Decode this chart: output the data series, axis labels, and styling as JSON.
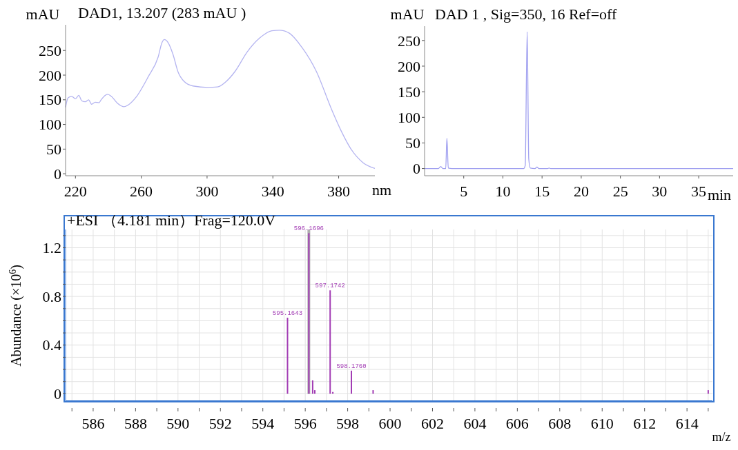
{
  "chart_data": [
    {
      "type": "line",
      "title": "DAD1, 13.207 (283 mAU )",
      "xlabel": "nm",
      "ylabel": "mAU",
      "xlim": [
        214,
        402
      ],
      "ylim": [
        -4,
        302
      ],
      "xticks": [
        220,
        260,
        300,
        340,
        380
      ],
      "yticks": [
        0,
        50,
        100,
        150,
        200,
        250
      ],
      "grid": false,
      "series": [
        {
          "color": "#b4b4f0",
          "x": [
            214,
            215.5,
            217.7,
            220,
            222,
            223.8,
            226,
            228,
            229.8,
            232,
            234.3,
            235.8,
            239.5,
            241.8,
            245.5,
            249.3,
            252.3,
            256.8,
            264.3,
            270.3,
            272.6,
            274,
            276.3,
            279.3,
            282.3,
            286.1,
            291.4,
            300.4,
            306.4,
            310.9,
            316.9,
            324.4,
            331.9,
            339.4,
            344,
            350,
            357.5,
            366.5,
            375.5,
            381.5,
            387.5,
            395,
            402
          ],
          "values": [
            135,
            154,
            157,
            152,
            159,
            148,
            146,
            150,
            141,
            145,
            144,
            151,
            161,
            157,
            143,
            136,
            140,
            155,
            197,
            237,
            266,
            272,
            266,
            242,
            207,
            187,
            178,
            175,
            176,
            185,
            207,
            247,
            275,
            290,
            291,
            285,
            257,
            207,
            132,
            87,
            50,
            22,
            11
          ]
        }
      ]
    },
    {
      "type": "line",
      "title": "DAD 1 , Sig=350, 16 Ref=off",
      "xlabel": "min",
      "ylabel": "mAU",
      "xlim": [
        0,
        39.4
      ],
      "ylim": [
        -14,
        278
      ],
      "xticks": [
        5,
        10,
        15,
        20,
        25,
        30,
        35
      ],
      "yticks": [
        0,
        50,
        100,
        150,
        200,
        250
      ],
      "grid": false,
      "series": [
        {
          "color": "#a0a0f0",
          "x": [
            0,
            1.76,
            2.06,
            2.35,
            2.7,
            2.85,
            3.03,
            3.5,
            12.65,
            12.85,
            13.1,
            13.3,
            13.5,
            14.1,
            14.35,
            14.6,
            15.7,
            15.9,
            16.1,
            39.4
          ],
          "values": [
            0,
            0,
            4,
            0,
            0,
            59,
            1,
            0,
            0,
            6,
            267,
            19,
            1,
            0,
            3,
            0,
            0,
            1,
            0,
            0
          ]
        }
      ]
    },
    {
      "type": "bar",
      "title": "+ESI （4.181 min）Frag=120.0V",
      "xlabel": "m/z",
      "ylabel": "Abundance (×10$^{6}$)",
      "xlim": [
        584.7,
        615.2
      ],
      "ylim": [
        -0.06,
        1.35
      ],
      "xticks": [
        {
          "value": 585,
          "label": null
        },
        586,
        {
          "value": 587,
          "label": null
        },
        588,
        {
          "value": 589,
          "label": null
        },
        590,
        {
          "value": 591,
          "label": null
        },
        592,
        {
          "value": 593,
          "label": null
        },
        594,
        {
          "value": 595,
          "label": null
        },
        596,
        {
          "value": 597,
          "label": null
        },
        598,
        {
          "value": 599,
          "label": null
        },
        600,
        {
          "value": 601,
          "label": null
        },
        602,
        {
          "value": 603,
          "label": null
        },
        604,
        {
          "value": 605,
          "label": null
        },
        606,
        {
          "value": 607,
          "label": null
        },
        608,
        {
          "value": 609,
          "label": null
        },
        610,
        {
          "value": 611,
          "label": null
        },
        612,
        {
          "value": 613,
          "label": null
        },
        614,
        {
          "value": 615,
          "label": null
        }
      ],
      "yticks": [
        0,
        {
          "value": 0.1,
          "label": null
        },
        {
          "value": 0.2,
          "label": null
        },
        {
          "value": 0.3,
          "label": null
        },
        0.4,
        {
          "value": 0.5,
          "label": null
        },
        {
          "value": 0.6,
          "label": null
        },
        {
          "value": 0.7,
          "label": null
        },
        0.8,
        {
          "value": 0.9,
          "label": null
        },
        {
          "value": 1.0,
          "label": null
        },
        {
          "value": 1.1,
          "label": null
        },
        1.2,
        {
          "value": 1.3,
          "label": null
        }
      ],
      "grid": true,
      "ref_lines": [
        {
          "axis": "x",
          "value": 596.17,
          "color": "#b0b0b0"
        }
      ],
      "annotations": [
        {
          "text": "595.1643",
          "x": 595.1643,
          "y": 0.625
        },
        {
          "text": "596.1696",
          "x": 596.1696,
          "y": 1.32
        },
        {
          "text": "597.1742",
          "x": 597.1742,
          "y": 0.85
        },
        {
          "text": "598.1760",
          "x": 598.176,
          "y": 0.19
        }
      ],
      "series": [
        {
          "color": "#a23cb4",
          "x": [
            595.1643,
            596.1696,
            596.35,
            596.45,
            597.1742,
            597.3,
            598.176,
            599.2,
            615.0
          ],
          "values": [
            0.625,
            1.32,
            0.11,
            0.03,
            0.85,
            0.015,
            0.19,
            0.03,
            0.03
          ]
        }
      ]
    }
  ]
}
